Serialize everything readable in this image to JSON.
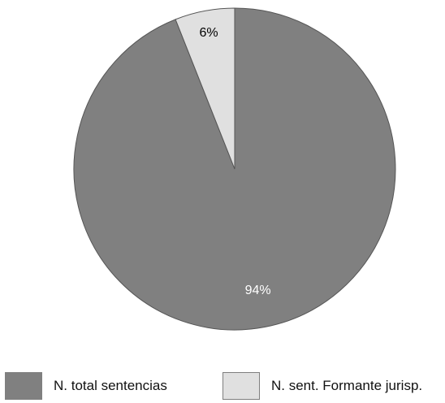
{
  "chart_data": {
    "type": "pie",
    "labels": [
      "N. total sentencias",
      "N. sent. Formante jurisp."
    ],
    "values": [
      94,
      6
    ],
    "value_labels": [
      "94%",
      "6%"
    ],
    "colors": [
      "#808080",
      "#e0e0e0"
    ],
    "label_colors": [
      "#ffffff",
      "#000000"
    ],
    "start": "12 o'clock",
    "direction": "clockwise",
    "legend_position": "bottom"
  }
}
